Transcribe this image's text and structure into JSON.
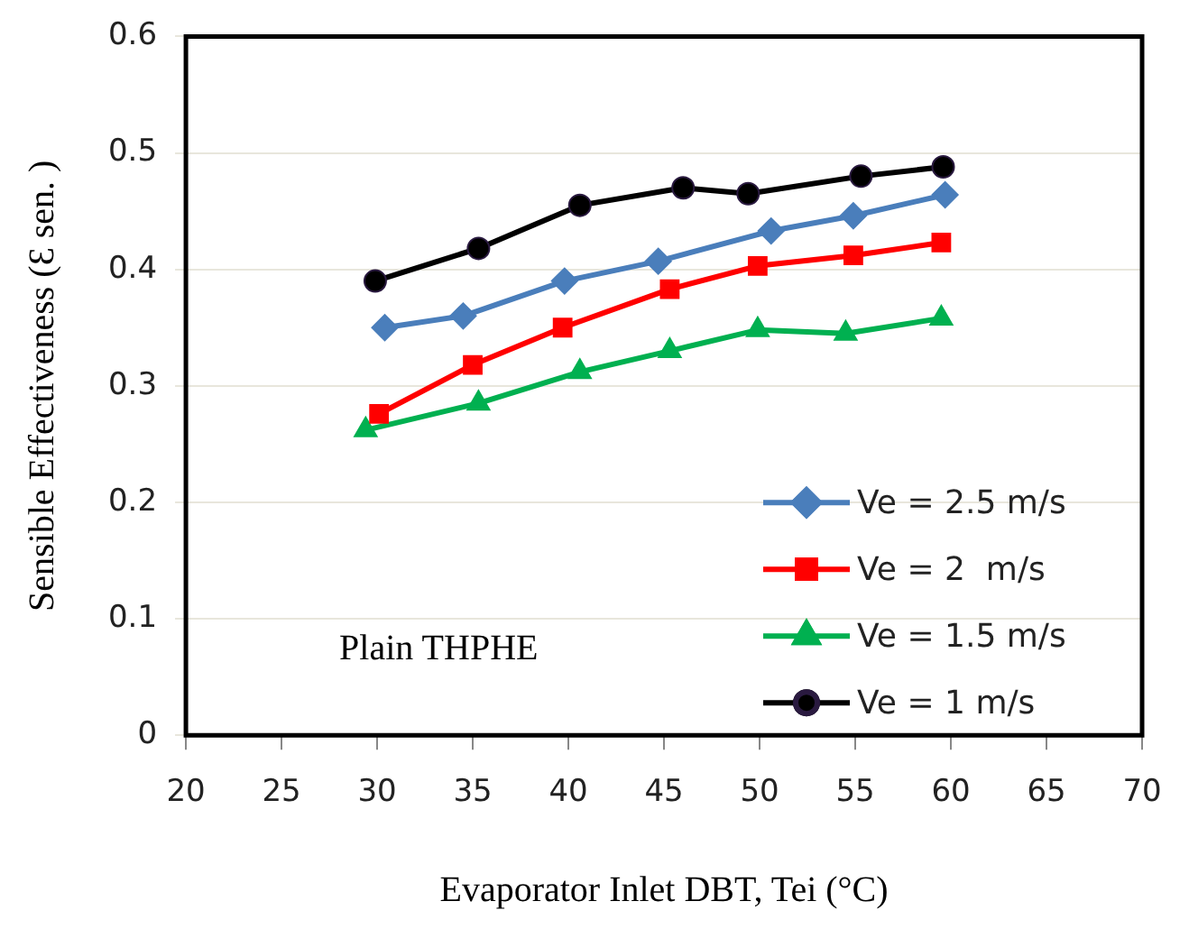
{
  "chart_data": {
    "type": "line",
    "xlabel": "Evaporator Inlet DBT, Tei (°C)",
    "ylabel": "Sensible Effectiveness (Ɛ sen. )",
    "xlim": [
      20,
      70
    ],
    "xticks": [
      20,
      25,
      30,
      35,
      40,
      45,
      50,
      55,
      60,
      65,
      70
    ],
    "ylim": [
      0,
      0.6
    ],
    "yticks": [
      0,
      0.1,
      0.2,
      0.3,
      0.4,
      0.5,
      0.6
    ],
    "grid": "y",
    "legend": "bottom right",
    "annotations": [
      "Plain THPHE"
    ],
    "series": [
      {
        "name": "Ve = 2.5 m/s",
        "color": "#4a7ebb",
        "marker": "diamond",
        "x": [
          30.4,
          34.5,
          39.8,
          44.7,
          50.6,
          54.9,
          59.7
        ],
        "values": [
          0.35,
          0.36,
          0.39,
          0.407,
          0.433,
          0.446,
          0.464
        ]
      },
      {
        "name": "Ve = 2  m/s",
        "color": "#ff0000",
        "marker": "square",
        "x": [
          30.1,
          35,
          39.7,
          45.3,
          49.9,
          54.9,
          59.5
        ],
        "values": [
          0.276,
          0.318,
          0.35,
          0.383,
          0.403,
          0.412,
          0.423
        ]
      },
      {
        "name": "Ve = 1.5 m/s",
        "color": "#00b050",
        "marker": "triangle",
        "x": [
          29.4,
          35.3,
          40.6,
          45.3,
          49.9,
          54.5,
          59.5
        ],
        "values": [
          0.262,
          0.285,
          0.312,
          0.33,
          0.348,
          0.345,
          0.358
        ]
      },
      {
        "name": "Ve = 1 m/s",
        "color": "#000000",
        "marker": "circle",
        "x": [
          29.9,
          35.3,
          40.6,
          46,
          49.4,
          55.3,
          59.6
        ],
        "values": [
          0.39,
          0.418,
          0.455,
          0.47,
          0.465,
          0.48,
          0.488
        ]
      }
    ]
  }
}
